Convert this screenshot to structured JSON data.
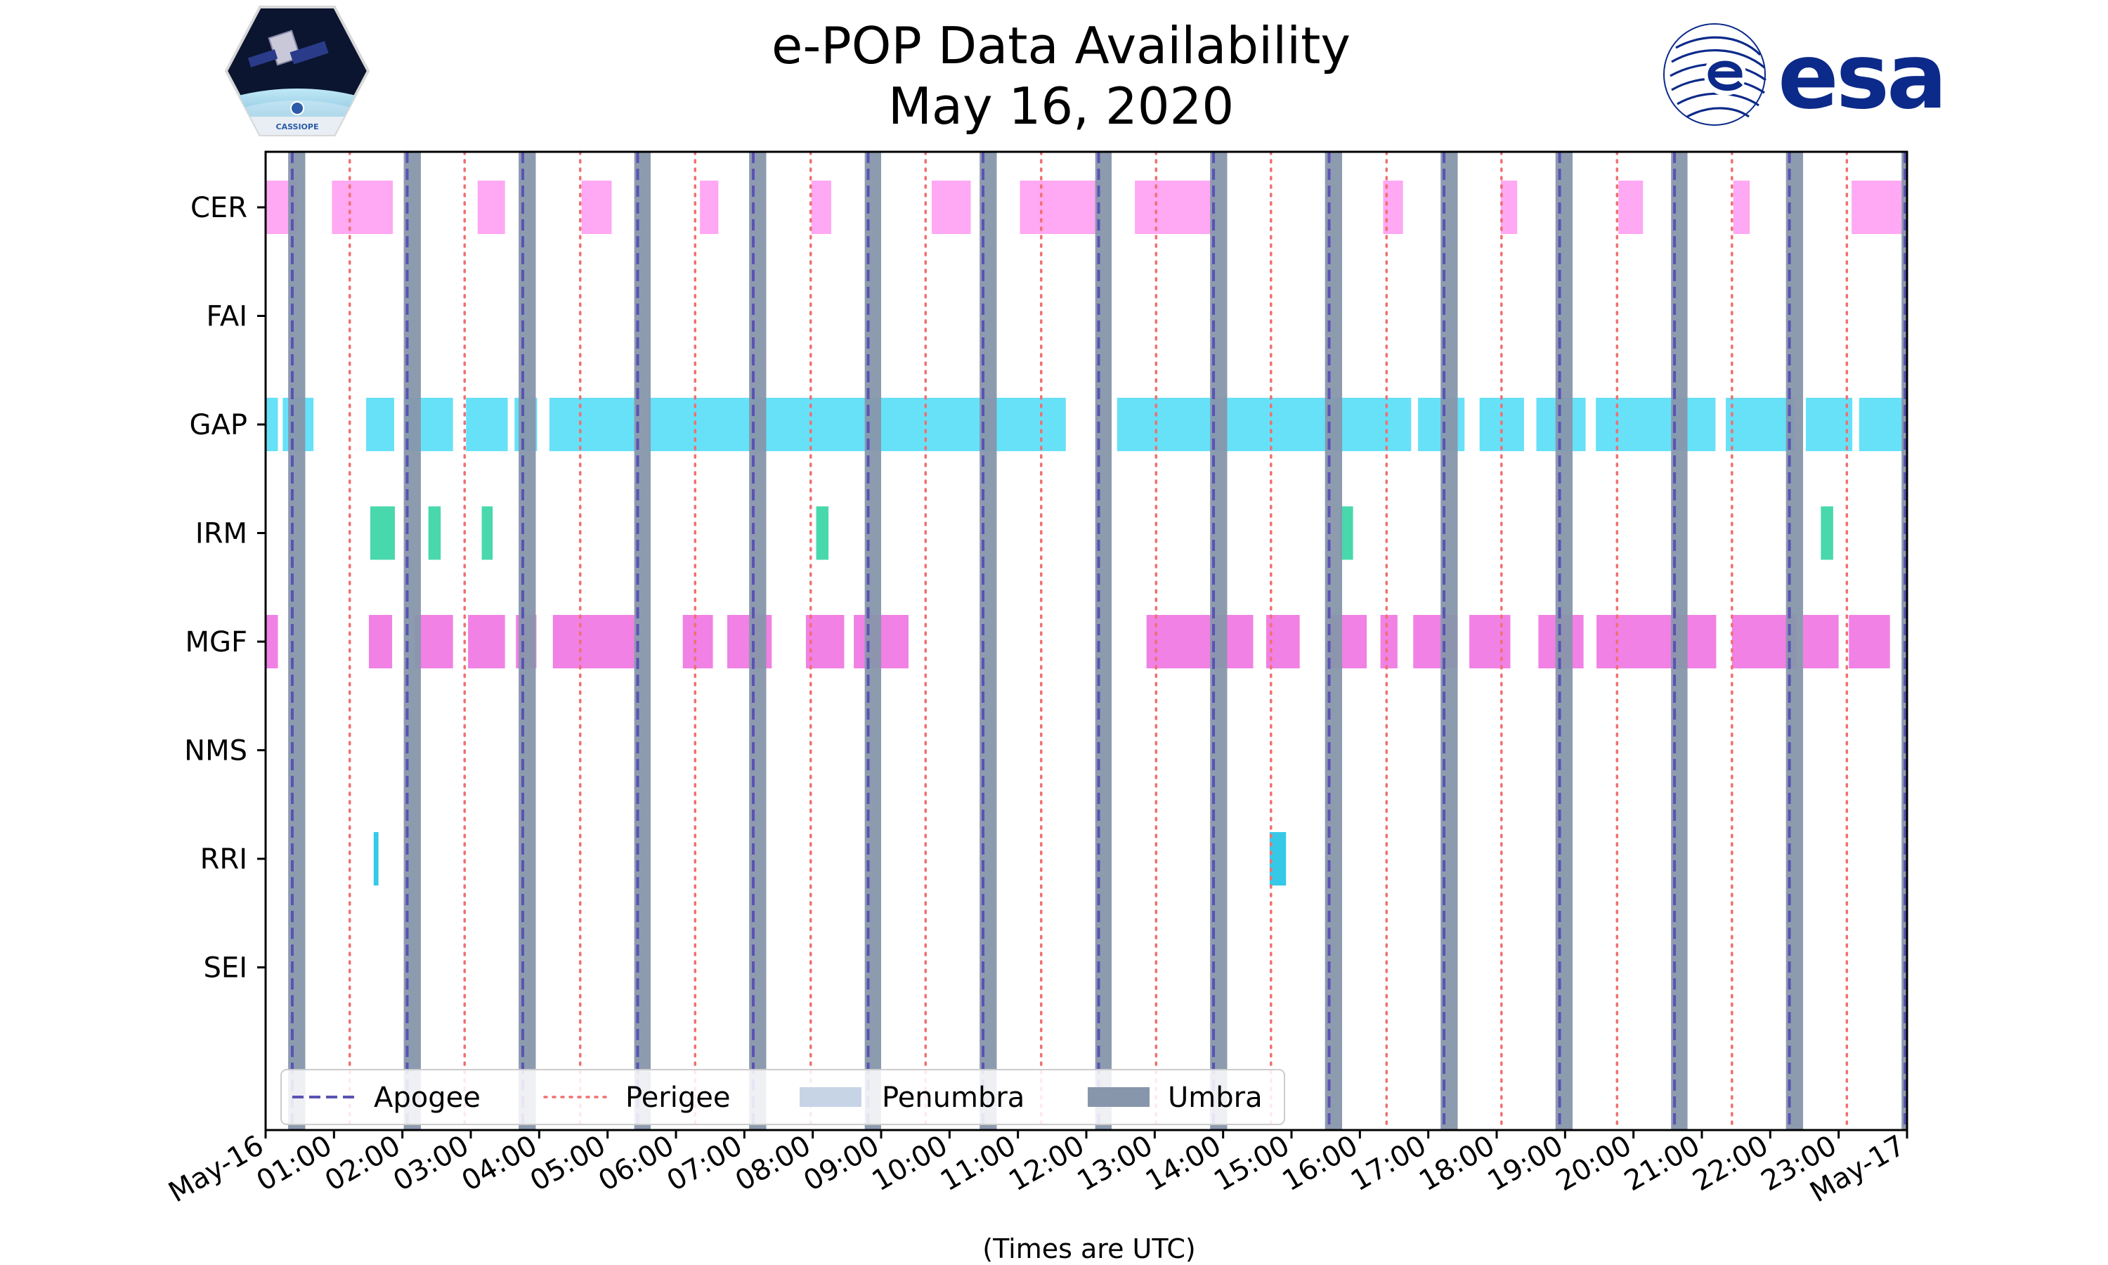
{
  "chart_data": {
    "type": "timeline",
    "title": "e-POP Data Availability",
    "subtitle": "May 16, 2020",
    "xlabel": "(Times are UTC)",
    "ylabel": "",
    "xlim_hours": [
      0,
      24
    ],
    "x_tick_labels": [
      "May-16",
      "01:00",
      "02:00",
      "03:00",
      "04:00",
      "05:00",
      "06:00",
      "07:00",
      "08:00",
      "09:00",
      "10:00",
      "11:00",
      "12:00",
      "13:00",
      "14:00",
      "15:00",
      "16:00",
      "17:00",
      "18:00",
      "19:00",
      "20:00",
      "21:00",
      "22:00",
      "23:00",
      "May-17"
    ],
    "instruments": [
      "CER",
      "FAI",
      "GAP",
      "IRM",
      "MGF",
      "NMS",
      "RRI",
      "SEI"
    ],
    "colors": {
      "CER": "#ffa3f2",
      "GAP": "#5fdff8",
      "IRM": "#3ed6a8",
      "MGF": "#f07ae3",
      "RRI": "#2bc6e6",
      "umbra": "#8796ab",
      "penumbra": "#c7d4e6",
      "apogee": "#5a53b3",
      "perigee": "#ef7070"
    },
    "intervals": {
      "CER": [
        [
          0.0,
          0.46
        ],
        [
          0.97,
          1.86
        ],
        [
          3.1,
          3.5
        ],
        [
          4.62,
          5.06
        ],
        [
          6.35,
          6.62
        ],
        [
          7.98,
          8.27
        ],
        [
          9.74,
          10.31
        ],
        [
          11.03,
          12.2
        ],
        [
          12.71,
          13.88
        ],
        [
          16.34,
          16.63
        ],
        [
          18.06,
          18.3
        ],
        [
          19.78,
          20.14
        ],
        [
          21.46,
          21.7
        ],
        [
          23.19,
          24.0
        ]
      ],
      "FAI": [],
      "GAP": [
        [
          0.0,
          0.18
        ],
        [
          0.25,
          0.7
        ],
        [
          1.47,
          1.88
        ],
        [
          2.04,
          2.74
        ],
        [
          2.93,
          3.54
        ],
        [
          3.64,
          3.97
        ],
        [
          4.15,
          5.4
        ],
        [
          5.6,
          11.7
        ],
        [
          12.45,
          16.75
        ],
        [
          16.85,
          17.53
        ],
        [
          17.75,
          18.4
        ],
        [
          18.58,
          19.3
        ],
        [
          19.45,
          21.2
        ],
        [
          21.35,
          22.35
        ],
        [
          22.52,
          23.2
        ],
        [
          23.3,
          23.95
        ],
        [
          23.98,
          24.0
        ]
      ],
      "IRM": [
        [
          1.53,
          1.89
        ],
        [
          2.38,
          2.56
        ],
        [
          3.16,
          3.32
        ],
        [
          8.05,
          8.23
        ],
        [
          15.71,
          15.9
        ],
        [
          22.74,
          22.92
        ]
      ],
      "MGF": [
        [
          0.0,
          0.18
        ],
        [
          1.51,
          1.85
        ],
        [
          2.18,
          2.74
        ],
        [
          2.96,
          3.5
        ],
        [
          3.66,
          3.96
        ],
        [
          4.2,
          5.4
        ],
        [
          6.1,
          6.54
        ],
        [
          6.75,
          7.4
        ],
        [
          7.9,
          8.46
        ],
        [
          8.6,
          9.4
        ],
        [
          12.88,
          14.44
        ],
        [
          14.63,
          15.12
        ],
        [
          15.54,
          16.1
        ],
        [
          16.3,
          16.55
        ],
        [
          16.78,
          17.43
        ],
        [
          17.6,
          18.2
        ],
        [
          18.61,
          19.27
        ],
        [
          19.46,
          21.21
        ],
        [
          21.44,
          22.39
        ],
        [
          22.48,
          23.0
        ],
        [
          23.15,
          23.75
        ]
      ],
      "NMS": [],
      "RRI": [
        [
          1.58,
          1.65
        ],
        [
          14.68,
          14.92
        ]
      ],
      "SEI": []
    },
    "umbra": [
      [
        0.33,
        0.58
      ],
      [
        2.02,
        2.27
      ],
      [
        3.7,
        3.95
      ],
      [
        5.39,
        5.63
      ],
      [
        7.07,
        7.32
      ],
      [
        8.76,
        9.0
      ],
      [
        10.44,
        10.69
      ],
      [
        12.13,
        12.37
      ],
      [
        13.81,
        14.06
      ],
      [
        15.49,
        15.74
      ],
      [
        17.18,
        17.43
      ],
      [
        18.86,
        19.11
      ],
      [
        20.55,
        20.79
      ],
      [
        22.23,
        22.48
      ],
      [
        23.92,
        24.0
      ]
    ],
    "apogee_hours": [
      0.39,
      2.07,
      3.76,
      5.44,
      7.13,
      8.81,
      10.49,
      12.18,
      13.86,
      15.55,
      17.23,
      18.92,
      20.6,
      22.28,
      23.97
    ],
    "perigee_hours": [
      1.23,
      2.91,
      4.6,
      6.28,
      7.97,
      9.65,
      11.34,
      13.02,
      14.7,
      16.39,
      18.07,
      19.76,
      21.44,
      23.12
    ],
    "legend": {
      "position": "lower-left",
      "entries": [
        {
          "label": "Apogee",
          "style": "dashed"
        },
        {
          "label": "Perigee",
          "style": "dotted"
        },
        {
          "label": "Penumbra",
          "style": "patch-light"
        },
        {
          "label": "Umbra",
          "style": "patch-dark"
        }
      ]
    }
  },
  "logos": {
    "left": {
      "name": "CASSIOPE",
      "label": "CASSIOPE"
    },
    "right": {
      "name": "esa",
      "label": "esa"
    }
  }
}
